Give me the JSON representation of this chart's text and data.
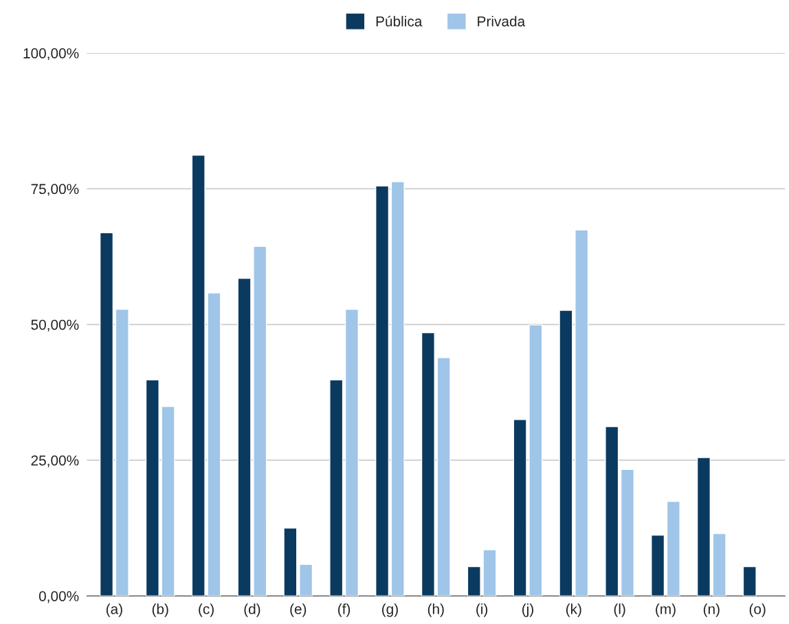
{
  "chart_data": {
    "type": "bar",
    "categories": [
      "(a)",
      "(b)",
      "(c)",
      "(d)",
      "(e)",
      "(f)",
      "(g)",
      "(h)",
      "(i)",
      "(j)",
      "(k)",
      "(l)",
      "(m)",
      "(n)",
      "(o)"
    ],
    "series": [
      {
        "name": "Pública",
        "color": "#0b3a60",
        "values": [
          66.9,
          39.8,
          81.2,
          58.5,
          12.5,
          39.8,
          75.5,
          48.5,
          5.4,
          32.5,
          52.6,
          31.2,
          11.2,
          25.5,
          5.4
        ]
      },
      {
        "name": "Privada",
        "color": "#9fc5e8",
        "values": [
          52.8,
          34.9,
          55.8,
          64.4,
          5.8,
          52.8,
          76.3,
          43.9,
          8.5,
          49.9,
          67.4,
          23.3,
          17.4,
          11.5,
          null
        ]
      }
    ],
    "ylim": [
      0,
      100
    ],
    "yticks": [
      {
        "value": 0,
        "label": "0,00%"
      },
      {
        "value": 25,
        "label": "25,00%"
      },
      {
        "value": 50,
        "label": "50,00%"
      },
      {
        "value": 75,
        "label": "75,00%"
      },
      {
        "value": 100,
        "label": "100,00%"
      }
    ],
    "grid": "y",
    "legend": "top"
  }
}
